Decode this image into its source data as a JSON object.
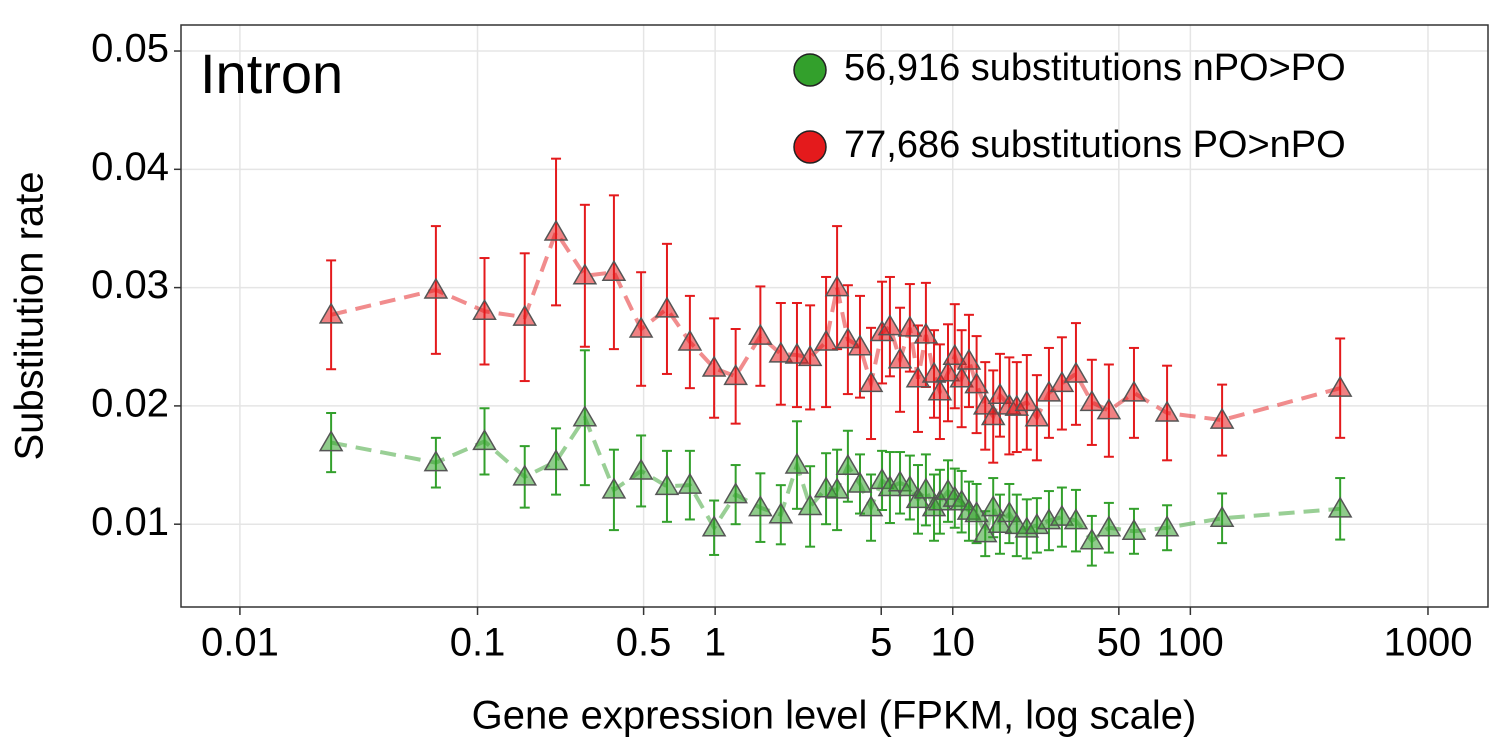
{
  "chart_data": {
    "type": "scatter",
    "annotation": "Intron",
    "x_label": "Gene expression level (FPKM, log scale)",
    "y_label": "Substitution rate",
    "x_log": true,
    "grid": true,
    "legend_position": "top-right",
    "xlim": [
      0.00565,
      1789
    ],
    "ylim": [
      0.003,
      0.0522
    ],
    "xticks": [
      0.01,
      0.1,
      0.5,
      1,
      5,
      10,
      50,
      100,
      1000
    ],
    "yticks": [
      0.01,
      0.02,
      0.03,
      0.04,
      0.05
    ],
    "x": [
      0.0242,
      0.0668,
      0.107,
      0.158,
      0.214,
      0.283,
      0.375,
      0.488,
      0.627,
      0.783,
      0.99,
      1.22,
      1.55,
      1.89,
      2.21,
      2.51,
      2.93,
      3.26,
      3.62,
      4.07,
      4.53,
      5.04,
      5.44,
      6.0,
      6.6,
      7.14,
      7.71,
      8.34,
      8.83,
      9.55,
      10.2,
      10.9,
      11.7,
      12.6,
      13.7,
      14.8,
      15.8,
      17.3,
      18.6,
      20.5,
      22.6,
      25.4,
      28.8,
      33.0,
      38.5,
      45.4,
      57.9,
      79.8,
      136,
      427
    ],
    "series": [
      {
        "name": "56,916 substitutions nPO>PO",
        "color": "#33a02c",
        "values": [
          0.0169,
          0.0152,
          0.017,
          0.014,
          0.0153,
          0.019,
          0.0129,
          0.0145,
          0.0132,
          0.0133,
          0.0097,
          0.0125,
          0.0114,
          0.0108,
          0.015,
          0.0115,
          0.013,
          0.0129,
          0.0149,
          0.0134,
          0.0114,
          0.0137,
          0.0131,
          0.0135,
          0.0131,
          0.0121,
          0.0129,
          0.0114,
          0.0119,
          0.0128,
          0.0122,
          0.0119,
          0.0111,
          0.0109,
          0.0092,
          0.0114,
          0.01,
          0.0109,
          0.0099,
          0.0096,
          0.0099,
          0.0103,
          0.0106,
          0.0103,
          0.0086,
          0.0097,
          0.0094,
          0.0097,
          0.0105,
          0.0113
        ],
        "errors": [
          0.0025,
          0.0021,
          0.0028,
          0.0026,
          0.0028,
          0.0057,
          0.0034,
          0.003,
          0.003,
          0.0029,
          0.0023,
          0.0025,
          0.0029,
          0.0025,
          0.0037,
          0.0034,
          0.003,
          0.0034,
          0.003,
          0.0025,
          0.0028,
          0.0025,
          0.003,
          0.0026,
          0.0027,
          0.0029,
          0.003,
          0.0028,
          0.0027,
          0.0026,
          0.0025,
          0.0026,
          0.0025,
          0.0025,
          0.0019,
          0.0025,
          0.0025,
          0.0025,
          0.0026,
          0.0025,
          0.0023,
          0.0025,
          0.0025,
          0.0026,
          0.0021,
          0.0021,
          0.0019,
          0.0019,
          0.0021,
          0.0026
        ]
      },
      {
        "name": "77,686 substitutions PO>nPO",
        "color": "#e41a1c",
        "values": [
          0.0277,
          0.0298,
          0.028,
          0.0275,
          0.0347,
          0.031,
          0.0313,
          0.0265,
          0.0282,
          0.0254,
          0.0232,
          0.0225,
          0.0259,
          0.0244,
          0.0243,
          0.0241,
          0.0254,
          0.03,
          0.0256,
          0.025,
          0.0219,
          0.0262,
          0.0267,
          0.0239,
          0.0266,
          0.0223,
          0.026,
          0.0227,
          0.0212,
          0.0228,
          0.0242,
          0.0223,
          0.0238,
          0.0218,
          0.02,
          0.0191,
          0.0209,
          0.02,
          0.0199,
          0.0203,
          0.019,
          0.0211,
          0.0219,
          0.0227,
          0.0203,
          0.0196,
          0.0211,
          0.0194,
          0.0188,
          0.0215
        ],
        "errors": [
          0.0046,
          0.0054,
          0.0045,
          0.0054,
          0.0062,
          0.006,
          0.0065,
          0.0048,
          0.0055,
          0.0039,
          0.0042,
          0.004,
          0.0042,
          0.0043,
          0.0044,
          0.0044,
          0.0055,
          0.0052,
          0.0046,
          0.0043,
          0.0047,
          0.0043,
          0.0042,
          0.0044,
          0.0037,
          0.0045,
          0.0044,
          0.0037,
          0.004,
          0.0041,
          0.0044,
          0.0041,
          0.0039,
          0.0041,
          0.0037,
          0.0039,
          0.0035,
          0.0041,
          0.0038,
          0.004,
          0.0036,
          0.0038,
          0.0039,
          0.0043,
          0.0036,
          0.0039,
          0.0038,
          0.004,
          0.003,
          0.0042
        ]
      }
    ]
  }
}
